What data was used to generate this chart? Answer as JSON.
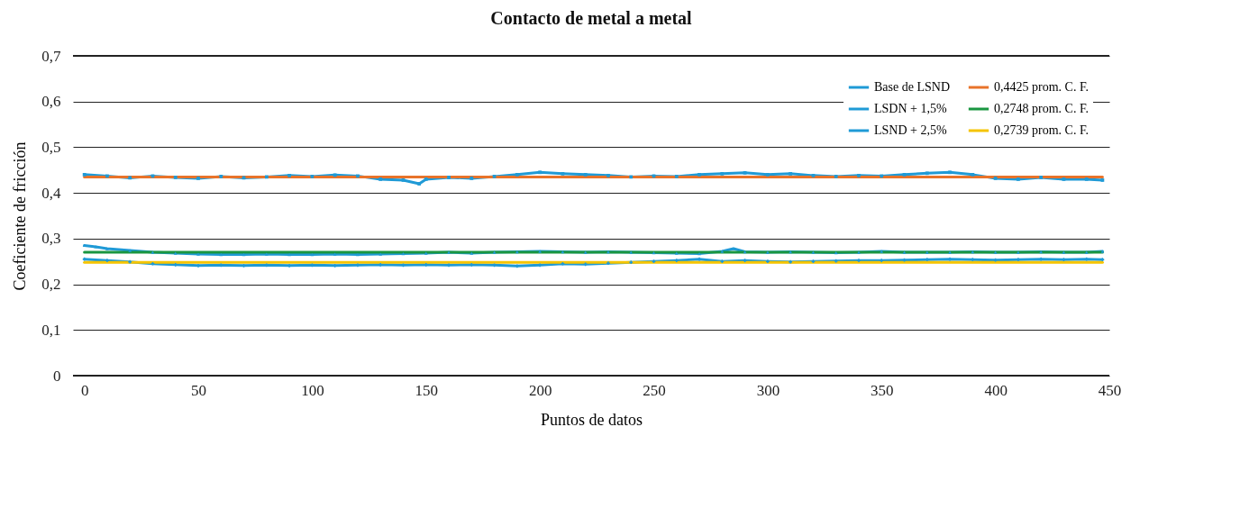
{
  "chart_data": {
    "type": "line",
    "title": "Contacto de metal a metal",
    "xlabel": "Puntos de datos",
    "ylabel": "Coeficiente de fricción",
    "xlim": [
      -5,
      450
    ],
    "xticks": [
      0,
      50,
      100,
      150,
      200,
      250,
      300,
      350,
      400,
      450
    ],
    "ylim": [
      0,
      0.7
    ],
    "yticks": [
      0,
      {
        "value": 0.1,
        "label": "0,1"
      },
      {
        "value": 0.2,
        "label": "0,2"
      },
      {
        "value": 0.3,
        "label": "0,3"
      },
      {
        "value": 0.4,
        "label": "0,4"
      },
      {
        "value": 0.5,
        "label": "0,5"
      },
      {
        "value": 0.6,
        "label": "0,6"
      },
      {
        "value": 0.7,
        "label": "0,7"
      }
    ],
    "grid": "y",
    "legend": "top right",
    "series": [
      {
        "name": "Base de LSND",
        "color": "#1f9ad6",
        "marker": "square",
        "x": [
          0,
          10,
          20,
          30,
          40,
          50,
          60,
          70,
          80,
          90,
          100,
          110,
          120,
          130,
          140,
          147,
          150,
          160,
          170,
          180,
          190,
          200,
          210,
          220,
          230,
          240,
          250,
          260,
          270,
          280,
          290,
          300,
          310,
          320,
          330,
          340,
          350,
          360,
          370,
          380,
          390,
          400,
          410,
          420,
          430,
          440,
          447
        ],
        "values": [
          0.44,
          0.437,
          0.433,
          0.437,
          0.434,
          0.432,
          0.436,
          0.433,
          0.435,
          0.438,
          0.436,
          0.439,
          0.437,
          0.43,
          0.428,
          0.42,
          0.43,
          0.434,
          0.432,
          0.436,
          0.44,
          0.445,
          0.442,
          0.44,
          0.438,
          0.435,
          0.437,
          0.436,
          0.44,
          0.442,
          0.444,
          0.44,
          0.442,
          0.438,
          0.436,
          0.438,
          0.437,
          0.44,
          0.443,
          0.445,
          0.44,
          0.432,
          0.43,
          0.434,
          0.43,
          0.43,
          0.428
        ]
      },
      {
        "name": "LSDN + 1,5%",
        "color": "#1f9ad6",
        "marker": "triangle",
        "x": [
          0,
          5,
          10,
          20,
          30,
          40,
          50,
          60,
          70,
          80,
          90,
          100,
          110,
          120,
          130,
          140,
          150,
          160,
          170,
          180,
          190,
          200,
          210,
          220,
          230,
          240,
          250,
          260,
          270,
          280,
          285,
          290,
          300,
          310,
          320,
          330,
          340,
          350,
          360,
          370,
          380,
          390,
          400,
          410,
          420,
          430,
          440,
          447
        ],
        "values": [
          0.285,
          0.282,
          0.278,
          0.274,
          0.27,
          0.268,
          0.266,
          0.265,
          0.265,
          0.266,
          0.265,
          0.265,
          0.266,
          0.265,
          0.266,
          0.267,
          0.268,
          0.27,
          0.268,
          0.27,
          0.271,
          0.272,
          0.271,
          0.27,
          0.271,
          0.27,
          0.269,
          0.268,
          0.267,
          0.272,
          0.278,
          0.271,
          0.27,
          0.271,
          0.27,
          0.269,
          0.27,
          0.272,
          0.27,
          0.27,
          0.27,
          0.271,
          0.27,
          0.27,
          0.271,
          0.27,
          0.27,
          0.272
        ]
      },
      {
        "name": "LSND + 2,5%",
        "color": "#1f9ad6",
        "marker": "cross",
        "x": [
          0,
          10,
          20,
          30,
          40,
          50,
          60,
          70,
          80,
          90,
          100,
          110,
          120,
          130,
          140,
          150,
          160,
          170,
          180,
          190,
          200,
          210,
          220,
          230,
          240,
          250,
          260,
          270,
          280,
          290,
          300,
          310,
          320,
          330,
          340,
          350,
          360,
          370,
          380,
          390,
          400,
          410,
          420,
          430,
          440,
          447
        ],
        "values": [
          0.255,
          0.252,
          0.249,
          0.245,
          0.243,
          0.241,
          0.242,
          0.241,
          0.242,
          0.241,
          0.242,
          0.241,
          0.242,
          0.243,
          0.242,
          0.243,
          0.242,
          0.243,
          0.242,
          0.24,
          0.242,
          0.245,
          0.244,
          0.246,
          0.248,
          0.25,
          0.252,
          0.255,
          0.25,
          0.252,
          0.25,
          0.249,
          0.25,
          0.251,
          0.252,
          0.252,
          0.253,
          0.254,
          0.255,
          0.254,
          0.253,
          0.254,
          0.255,
          0.254,
          0.255,
          0.254
        ]
      },
      {
        "name": "0,4425 prom. C. F.",
        "color": "#e8732a",
        "marker": "none",
        "x": [
          0,
          447
        ],
        "values": [
          0.435,
          0.435
        ]
      },
      {
        "name": "0,2748 prom. C. F.",
        "color": "#1a9641",
        "marker": "none",
        "x": [
          0,
          447
        ],
        "values": [
          0.27,
          0.27
        ]
      },
      {
        "name": "0,2739 prom. C. F.",
        "color": "#f5c400",
        "marker": "none",
        "x": [
          0,
          447
        ],
        "values": [
          0.248,
          0.248
        ]
      }
    ]
  }
}
